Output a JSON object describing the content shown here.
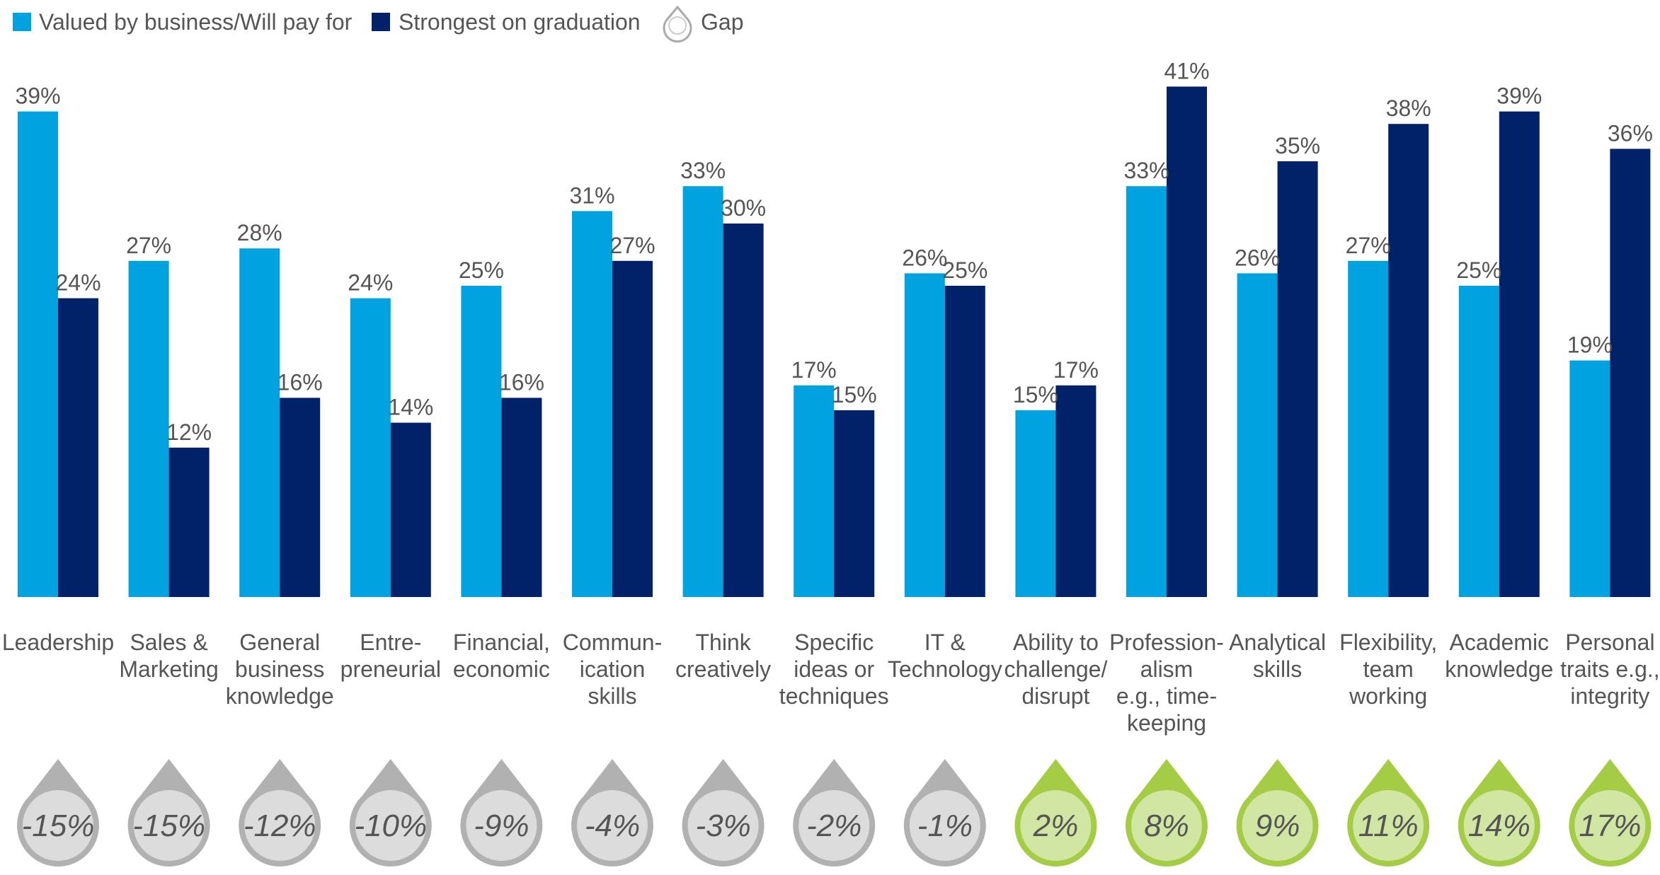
{
  "chart_data": {
    "type": "bar",
    "value_suffix": "%",
    "ylim": [
      0,
      45
    ],
    "grid": false,
    "legend_position": "top-left",
    "categories": [
      [
        "Leadership"
      ],
      [
        "Sales &",
        "Marketing"
      ],
      [
        "General",
        "business",
        "knowledge"
      ],
      [
        "Entre-",
        "preneurial"
      ],
      [
        "Financial,",
        "economic"
      ],
      [
        "Commun-",
        "ication",
        "skills"
      ],
      [
        "Think",
        "creatively"
      ],
      [
        "Specific",
        "ideas or",
        "techniques"
      ],
      [
        "IT &",
        "Technology"
      ],
      [
        "Ability to",
        "challenge/",
        "disrupt"
      ],
      [
        "Profession-",
        "alism",
        "e.g., time-",
        "keeping"
      ],
      [
        "Analytical",
        "skills"
      ],
      [
        "Flexibility,",
        "team",
        "working"
      ],
      [
        "Academic",
        "knowledge"
      ],
      [
        "Personal",
        "traits e.g.,",
        "integrity"
      ]
    ],
    "series": [
      {
        "name": "Valued by business/Will pay for",
        "color": "#00a3e0",
        "values": [
          39,
          27,
          28,
          24,
          25,
          31,
          33,
          17,
          26,
          15,
          33,
          26,
          27,
          25,
          19
        ]
      },
      {
        "name": "Strongest on graduation",
        "color": "#012169",
        "values": [
          24,
          12,
          16,
          14,
          16,
          27,
          30,
          15,
          25,
          17,
          41,
          35,
          38,
          39,
          36
        ]
      }
    ],
    "gap": {
      "name": "Gap",
      "values": [
        "-15%",
        "-15%",
        "-12%",
        "-10%",
        "-9%",
        "-4%",
        "-3%",
        "-2%",
        "-1%",
        "2%",
        "8%",
        "9%",
        "11%",
        "14%",
        "17%"
      ],
      "negative_colors": {
        "fill": "#dcdcdc",
        "ring": "#b1b1b1"
      },
      "positive_colors": {
        "fill": "#d2e6a3",
        "ring": "#a4cc45"
      }
    }
  }
}
